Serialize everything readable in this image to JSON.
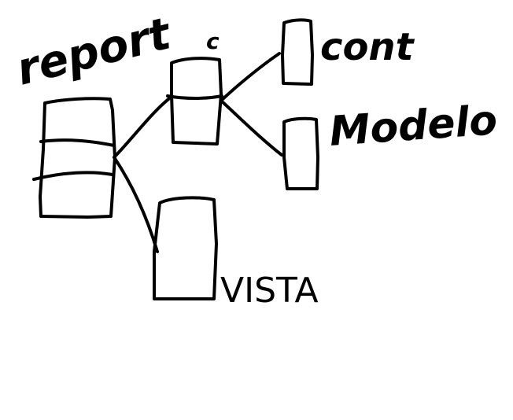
{
  "diagram": {
    "stroke_color": "#000000",
    "background_color": "#ffffff",
    "labels": {
      "report": "report",
      "c": "c",
      "cont": "cont",
      "modelo": "Modelo",
      "vista": "VISTA"
    }
  }
}
